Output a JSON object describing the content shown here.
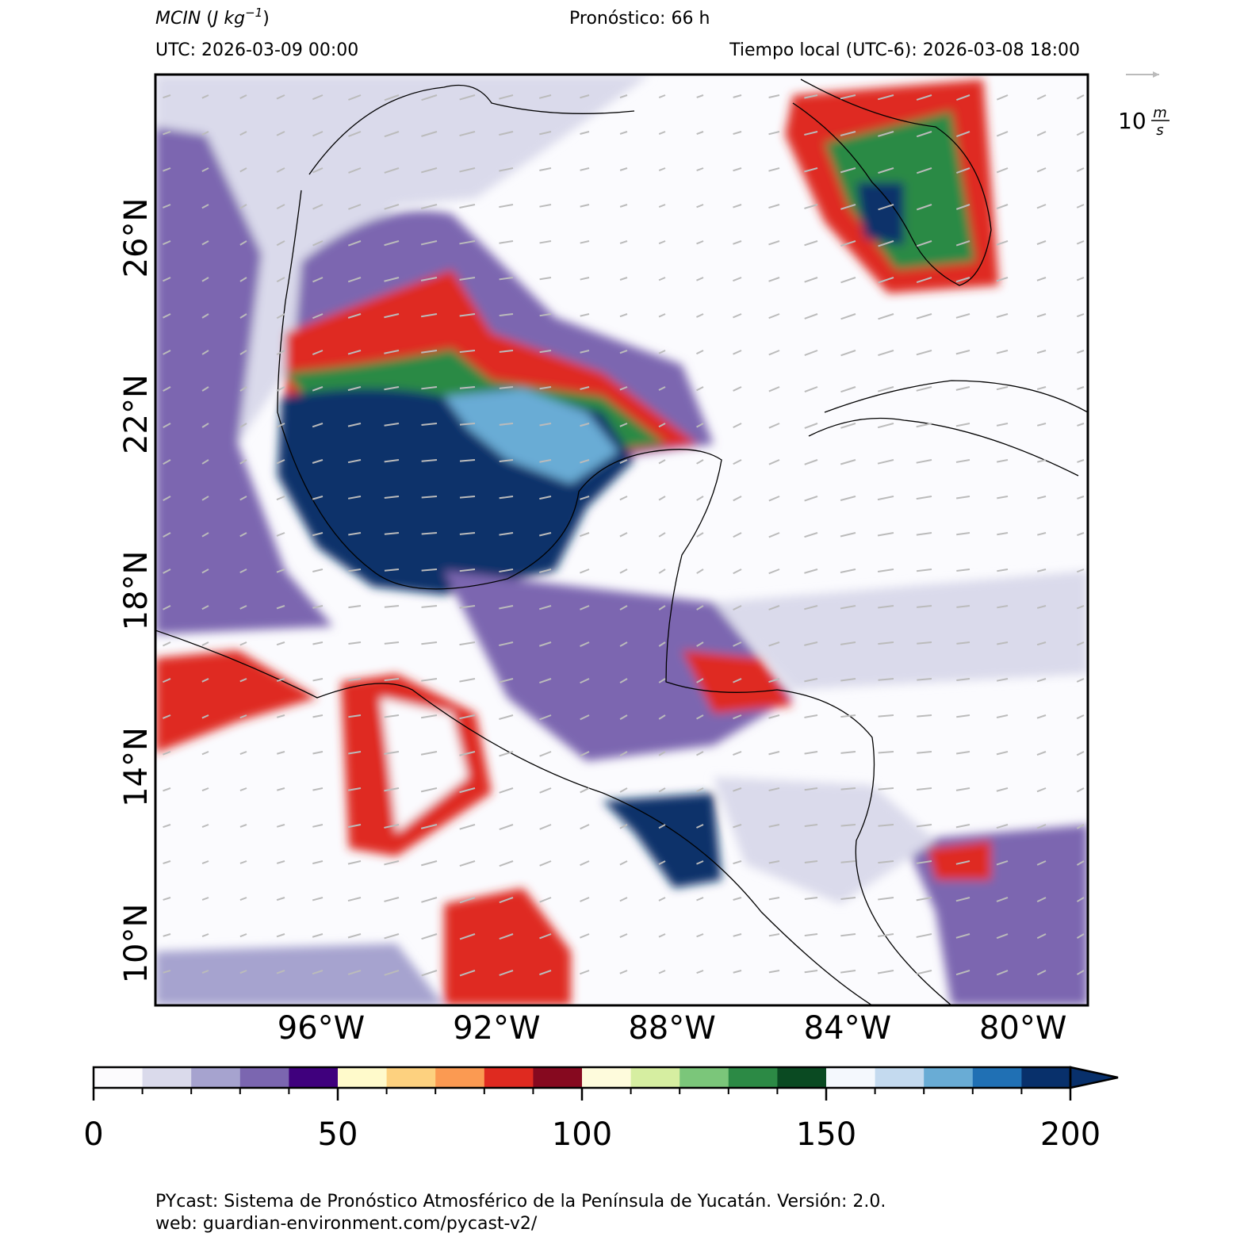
{
  "header": {
    "variable": "MCIN",
    "unit": "J kg",
    "unit_exponent": "−1",
    "forecast": "Pronóstico: 66 h",
    "utc": "UTC:  2026-03-09 00:00",
    "local": "Tiempo local (UTC-6): 2026-03-08 18:00"
  },
  "map": {
    "lat_labels": [
      "26°N",
      "22°N",
      "18°N",
      "14°N",
      "10°N"
    ],
    "lon_labels": [
      "96°W",
      "92°W",
      "88°W",
      "84°W",
      "80°W"
    ]
  },
  "wind_reference": {
    "value": "10",
    "unit_num": "m",
    "unit_den": "s"
  },
  "colorbar": {
    "lim": [
      0,
      200
    ],
    "ticks": [
      0,
      50,
      100,
      150,
      200
    ],
    "colors": [
      "#fcfbfd",
      "#dadaeb",
      "#a6a3cf",
      "#7b66b0",
      "#3f007d",
      "#fffacb",
      "#fdd17f",
      "#fb9a52",
      "#df2a20",
      "#86091f",
      "#fefbdc",
      "#d6eea1",
      "#7bc67a",
      "#2c8a45",
      "#0a4a22",
      "#f4f8fd",
      "#c4daef",
      "#69acd5",
      "#2070b4",
      "#08306b"
    ]
  },
  "footer": {
    "line1": "PYcast: Sistema de Pronóstico Atmosférico de la Península de Yucatán. Versión: 2.0.",
    "line2": "web: guardian-environment.com/pycast-v2/"
  }
}
